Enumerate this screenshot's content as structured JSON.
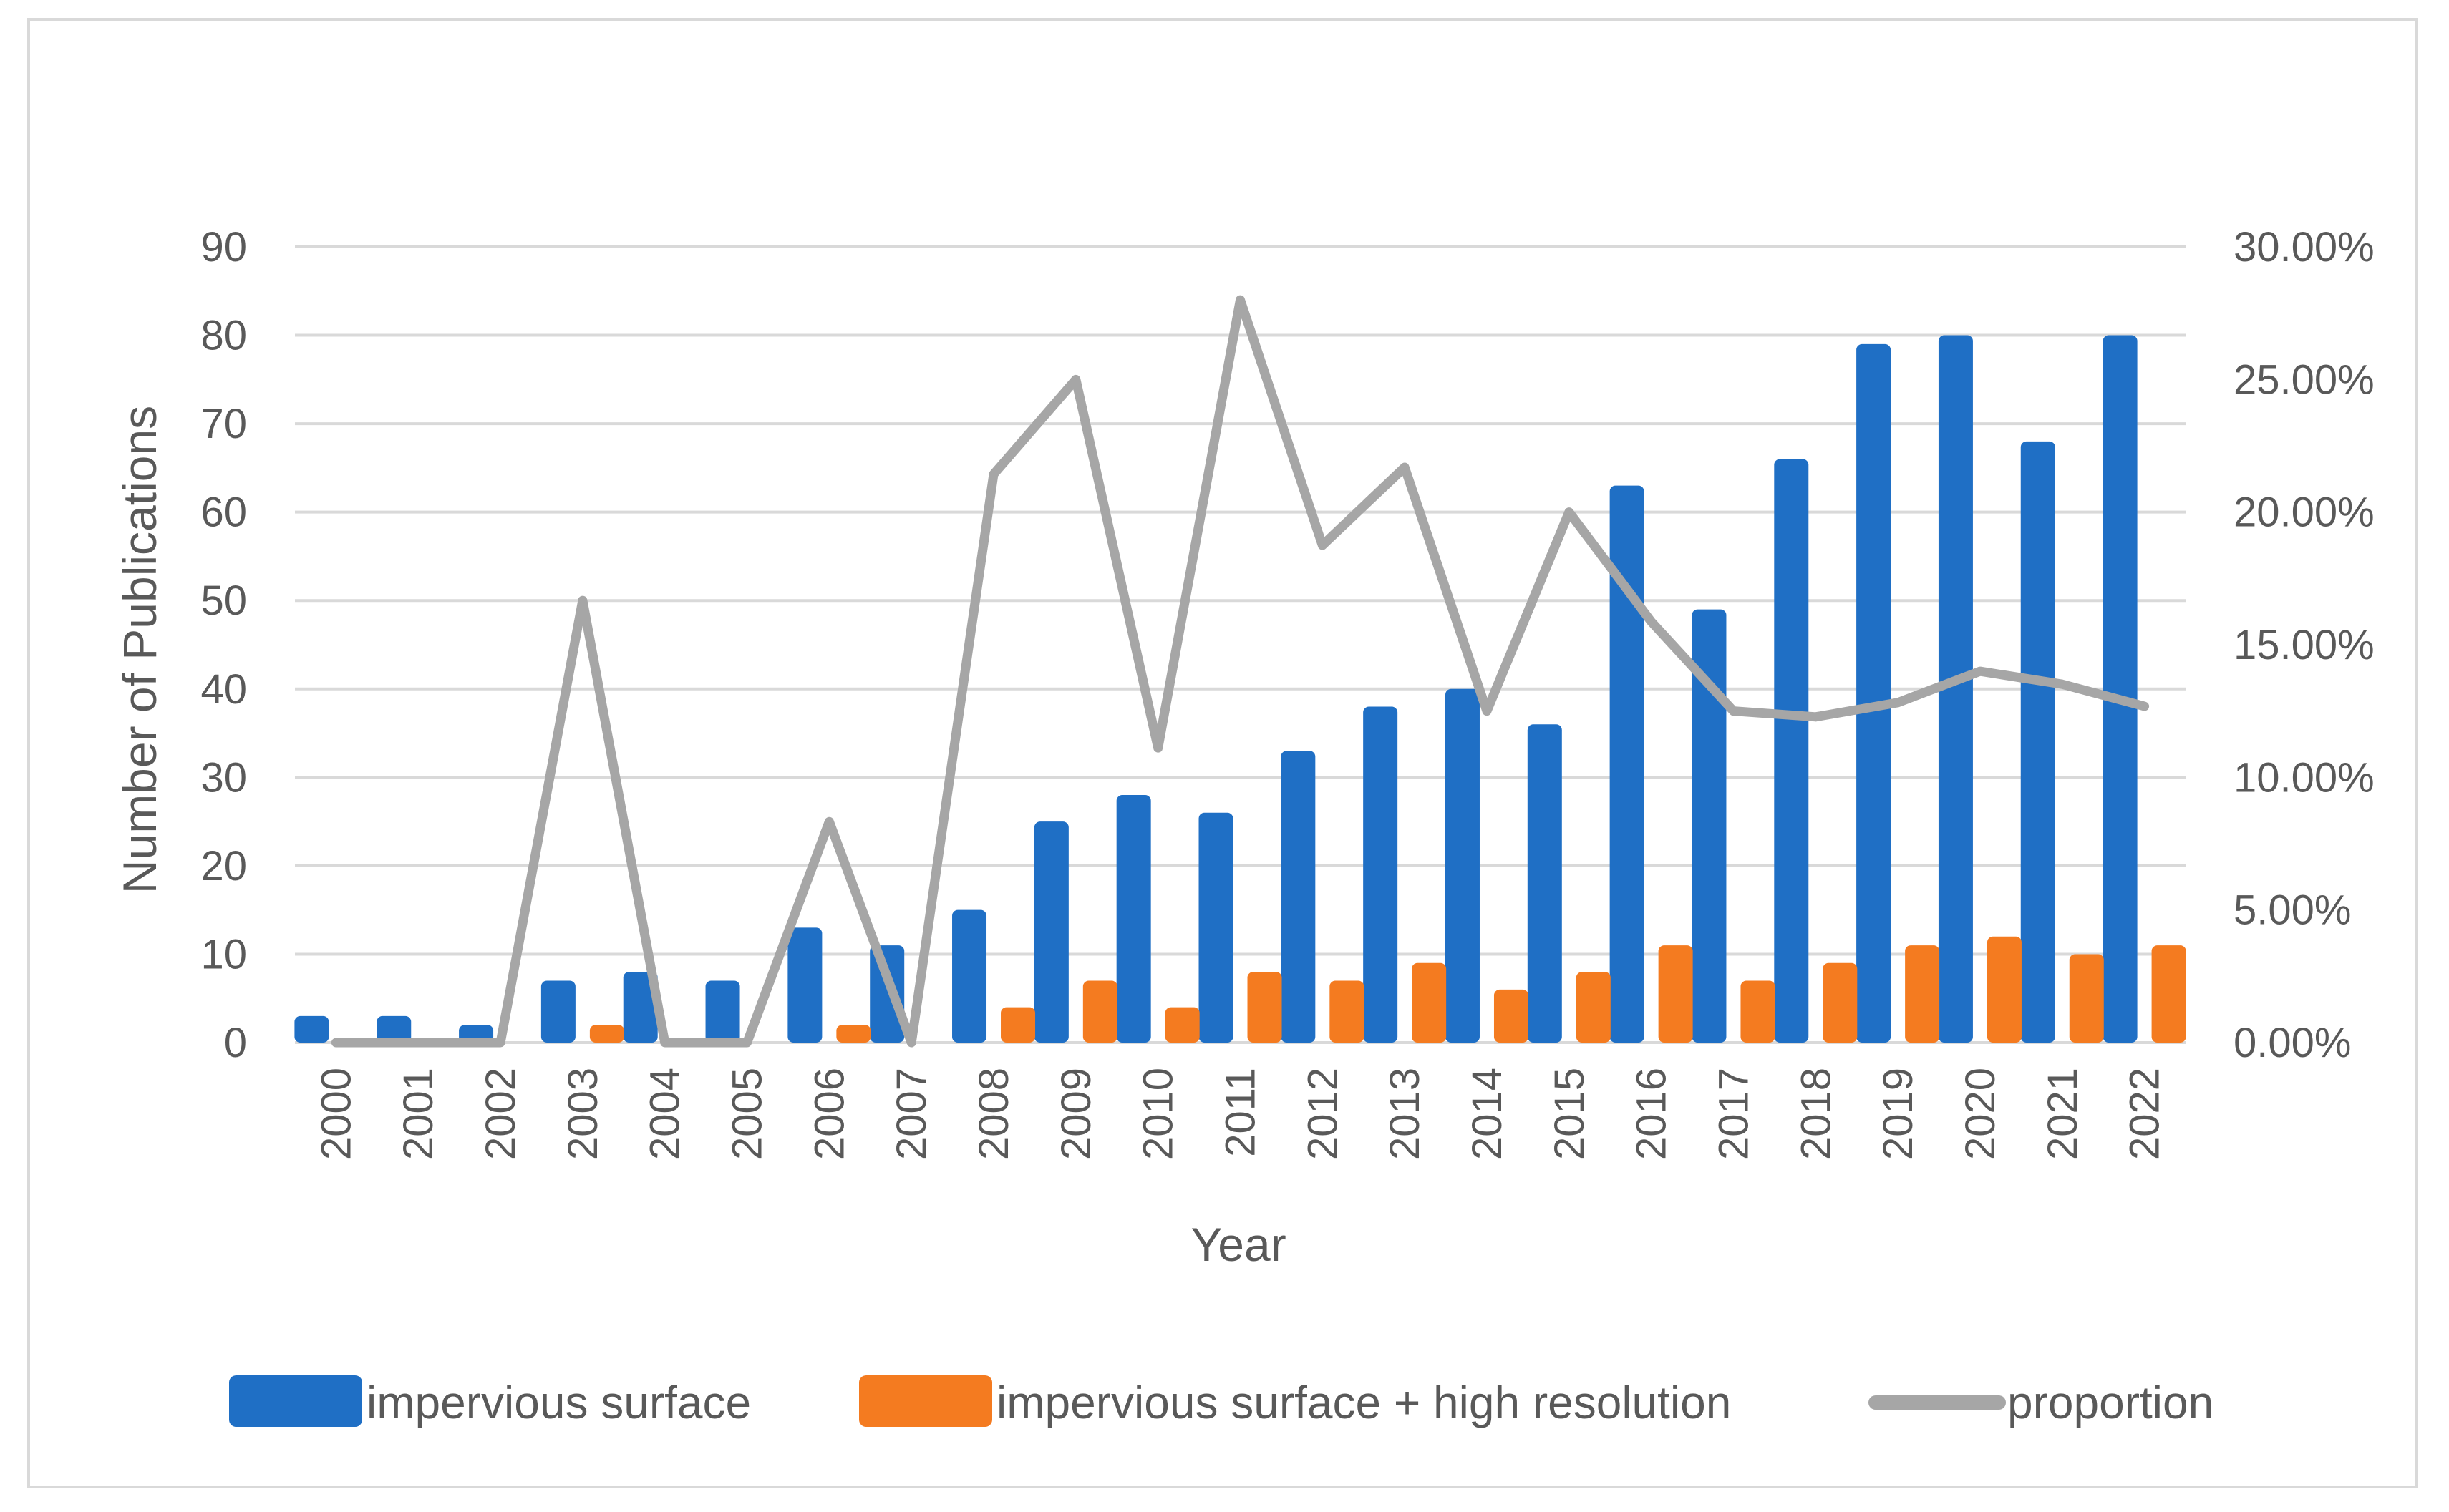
{
  "chart_data": {
    "type": "bar",
    "title": "",
    "xlabel": "Year",
    "ylabel": "Number of Publications",
    "y2label": "",
    "categories": [
      "2000",
      "2001",
      "2002",
      "2003",
      "2004",
      "2005",
      "2006",
      "2007",
      "2008",
      "2009",
      "2010",
      "2011",
      "2012",
      "2013",
      "2014",
      "2015",
      "2016",
      "2017",
      "2018",
      "2019",
      "2020",
      "2021",
      "2022"
    ],
    "ylim": [
      0,
      90
    ],
    "yticks": [
      0,
      10,
      20,
      30,
      40,
      50,
      60,
      70,
      80,
      90
    ],
    "y2lim": [
      0,
      0.3
    ],
    "y2ticks": [
      "0.00%",
      "5.00%",
      "10.00%",
      "15.00%",
      "20.00%",
      "25.00%",
      "30.00%"
    ],
    "grid": "horizontal",
    "legend_position": "bottom",
    "series": [
      {
        "name": "impervious surface",
        "type": "bar",
        "axis": "left",
        "color": "#1f6fc5",
        "values": [
          3,
          3,
          2,
          7,
          8,
          7,
          13,
          11,
          15,
          25,
          28,
          26,
          33,
          38,
          40,
          36,
          63,
          49,
          66,
          79,
          80,
          68,
          80
        ]
      },
      {
        "name": "impervious surface + high resolution",
        "type": "bar",
        "axis": "left",
        "color": "#f47b20",
        "values": [
          0,
          0,
          0,
          2,
          0,
          0,
          2,
          0,
          4,
          7,
          4,
          8,
          7,
          9,
          6,
          8,
          11,
          7,
          9,
          11,
          12,
          10,
          11
        ]
      },
      {
        "name": "proportion",
        "type": "line",
        "axis": "right",
        "color": "#a6a6a6",
        "values": [
          0,
          0,
          0,
          0.1667,
          0,
          0,
          0.0833,
          0,
          0.2143,
          0.25,
          0.1111,
          0.28,
          0.1875,
          0.2169,
          0.125,
          0.2,
          0.1587,
          0.125,
          0.1228,
          0.1282,
          0.14,
          0.1351,
          0.1268
        ]
      }
    ]
  }
}
